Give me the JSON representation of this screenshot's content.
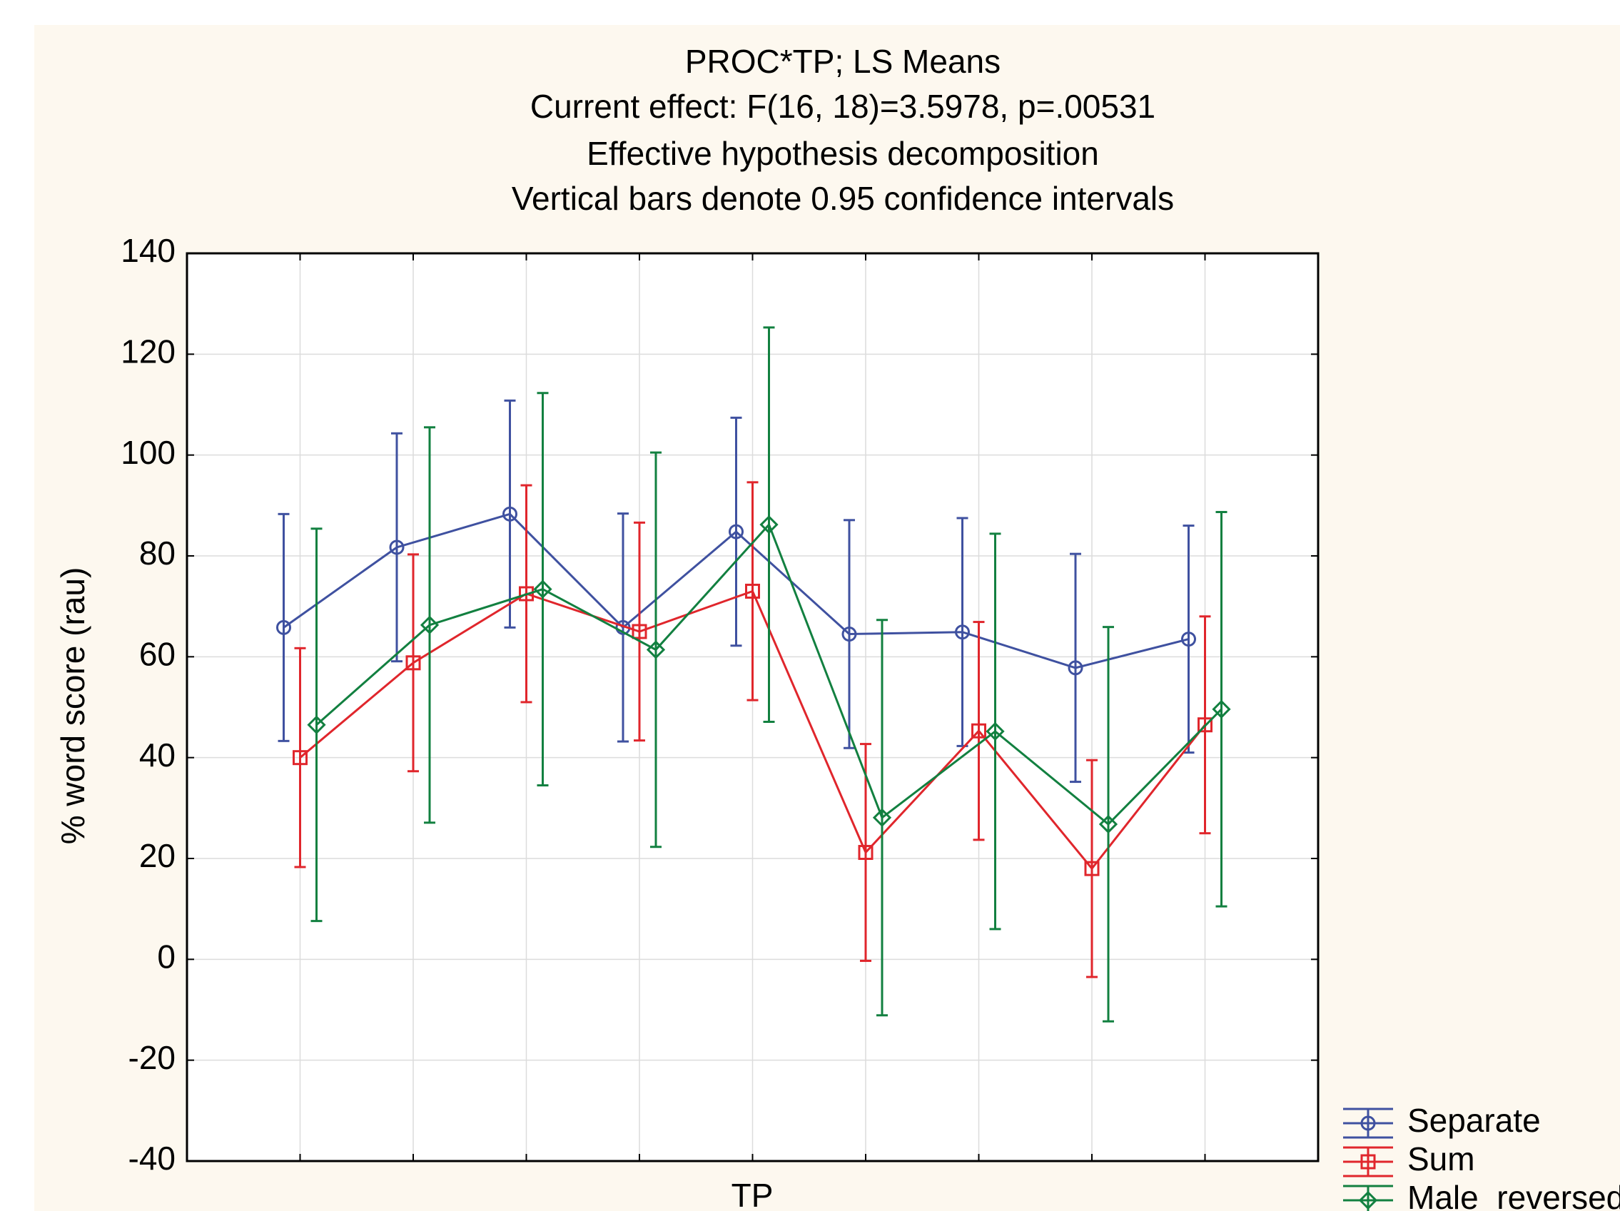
{
  "chart_data": {
    "type": "line",
    "title": "PROC*TP; LS Means",
    "subtitles": [
      "Current effect: F(16, 18)=3.5978, p=.00531",
      "Effective hypothesis decomposition",
      "Vertical bars denote 0.95 confidence intervals"
    ],
    "x_label": "TP",
    "y_label": "% word score (rau)",
    "categories": [
      null,
      null,
      null,
      null,
      null,
      null,
      null,
      null,
      null
    ],
    "series": [
      {
        "name": "Separate",
        "color": "#3f51a0",
        "marker": "circle",
        "values": [
          65.8,
          81.7,
          88.3,
          65.8,
          84.8,
          64.5,
          64.9,
          57.8,
          63.5
        ],
        "errors": [
          22.5,
          22.6,
          22.5,
          22.6,
          22.6,
          22.6,
          22.6,
          22.6,
          22.5
        ]
      },
      {
        "name": "Sum",
        "color": "#e0262c",
        "marker": "square",
        "values": [
          40.0,
          58.8,
          72.5,
          65.0,
          73.0,
          21.2,
          45.3,
          18.0,
          46.5
        ],
        "errors": [
          21.7,
          21.5,
          21.5,
          21.6,
          21.6,
          21.5,
          21.6,
          21.5,
          21.5
        ]
      },
      {
        "name": "Male_reversed",
        "color": "#128040",
        "marker": "diamond",
        "values": [
          46.5,
          66.3,
          73.4,
          61.4,
          86.2,
          28.1,
          45.2,
          26.8,
          49.6
        ],
        "errors": [
          38.9,
          39.2,
          38.9,
          39.1,
          39.1,
          39.2,
          39.2,
          39.1,
          39.1
        ]
      }
    ],
    "ylim": [
      -40,
      140
    ],
    "yticks": [
      -40,
      -20,
      0,
      20,
      40,
      60,
      80,
      100,
      120,
      140
    ],
    "grid": true,
    "legend": "bottom-right"
  }
}
